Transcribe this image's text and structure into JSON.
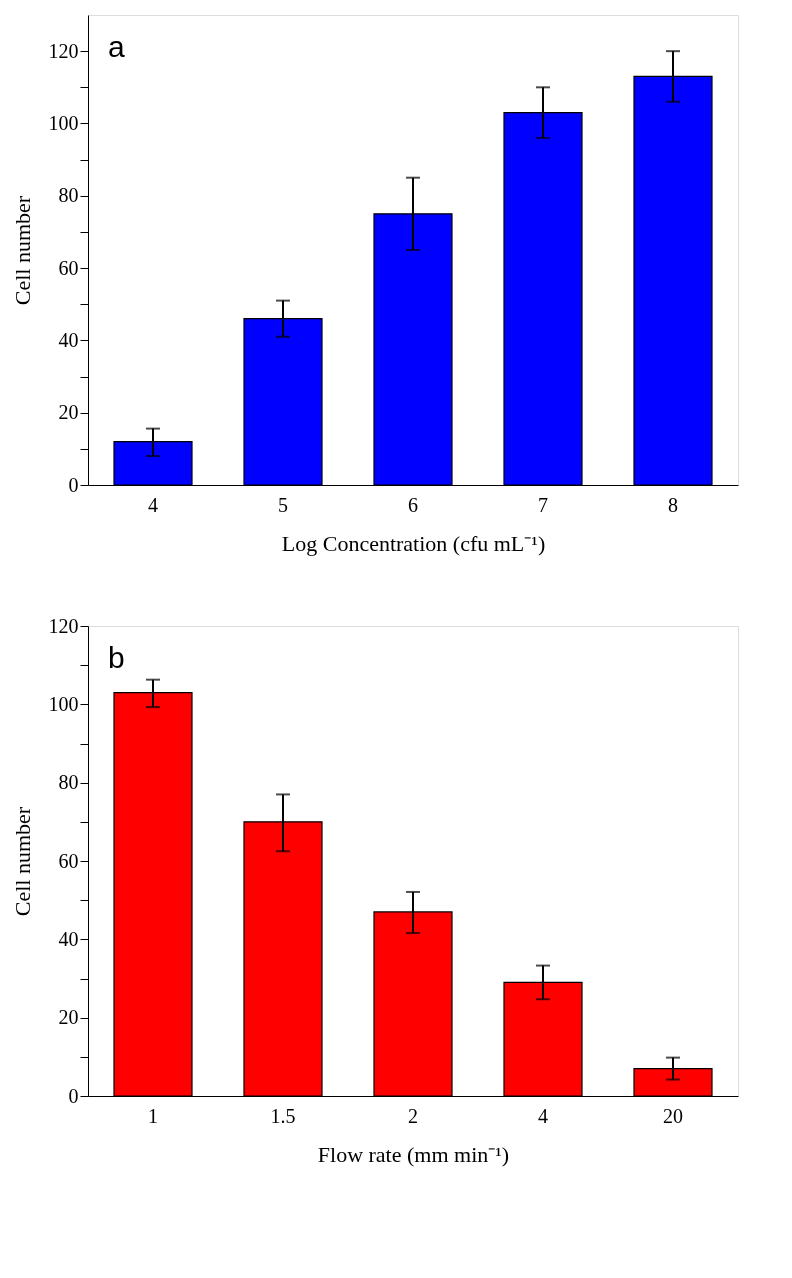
{
  "chart_data": [
    {
      "type": "bar",
      "categories": [
        "4",
        "5",
        "6",
        "7",
        "8"
      ],
      "values": [
        12,
        46,
        75,
        103,
        113
      ],
      "color": "#0000ff",
      "errors": [
        [
          8,
          15.6
        ],
        [
          41,
          51
        ],
        [
          65,
          85
        ],
        [
          96,
          110
        ],
        [
          106,
          120
        ]
      ],
      "xlabel": "Log Concentration (cfu mL⁻¹)",
      "ylabel": "Cell number",
      "annotations": [
        "a"
      ],
      "ylim": [
        0,
        130
      ],
      "yticks": [
        0,
        {
          "value": 10,
          "label": null
        },
        20,
        {
          "value": 30,
          "label": null
        },
        40,
        {
          "value": 50,
          "label": null
        },
        60,
        {
          "value": 70,
          "label": null
        },
        80,
        {
          "value": 90,
          "label": null
        },
        100,
        {
          "value": 110,
          "label": null
        },
        120
      ],
      "grid": false
    },
    {
      "type": "bar",
      "categories": [
        "1",
        "1.5",
        "2",
        "4",
        "20"
      ],
      "values": [
        103,
        70,
        47,
        29,
        7
      ],
      "color": "#ff0000",
      "errors": [
        [
          99.3,
          106.3
        ],
        [
          62.5,
          77
        ],
        [
          41.6,
          52.1
        ],
        [
          24.7,
          33.3
        ],
        [
          4.2,
          9.8
        ]
      ],
      "xlabel": "Flow rate (mm min⁻¹)",
      "ylabel": "Cell number",
      "annotations": [
        "b"
      ],
      "ylim": [
        0,
        120
      ],
      "yticks": [
        0,
        {
          "value": 10,
          "label": null
        },
        20,
        {
          "value": 30,
          "label": null
        },
        40,
        {
          "value": 50,
          "label": null
        },
        60,
        {
          "value": 70,
          "label": null
        },
        80,
        {
          "value": 90,
          "label": null
        },
        100,
        {
          "value": 110,
          "label": null
        },
        120
      ],
      "grid": false
    }
  ]
}
